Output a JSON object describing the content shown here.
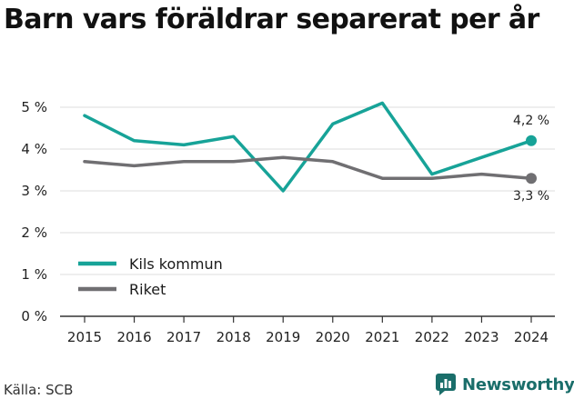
{
  "title": "Barn vars föräldrar separerat per år",
  "source": "Källa: SCB",
  "brand": "Newsworthy",
  "colors": {
    "kils": "#17a398",
    "riket": "#706f72",
    "grid": "#dcdcdc",
    "brand": "#1a6e6a"
  },
  "chart_data": {
    "type": "line",
    "title": "Barn vars föräldrar separerat per år",
    "x": [
      "2015",
      "2016",
      "2017",
      "2018",
      "2019",
      "2020",
      "2021",
      "2022",
      "2023",
      "2024"
    ],
    "ylim": [
      0,
      5
    ],
    "yticks": [
      "0 %",
      "1 %",
      "2 %",
      "3 %",
      "4 %",
      "5 %"
    ],
    "grid": true,
    "legend": "bottom-left",
    "series": [
      {
        "name": "Kils kommun",
        "values": [
          4.8,
          4.2,
          4.1,
          4.3,
          3.0,
          4.6,
          5.1,
          3.4,
          3.8,
          4.2
        ],
        "end_label": "4,2 %"
      },
      {
        "name": "Riket",
        "values": [
          3.7,
          3.6,
          3.7,
          3.7,
          3.8,
          3.7,
          3.3,
          3.3,
          3.4,
          3.3
        ],
        "end_label": "3,3 %"
      }
    ]
  }
}
